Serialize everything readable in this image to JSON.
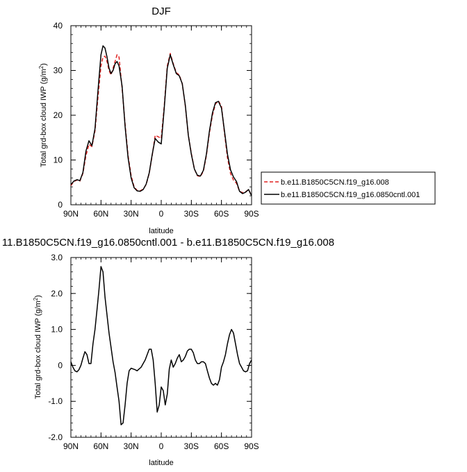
{
  "chart_data": [
    {
      "type": "line",
      "title": "DJF",
      "xlabel": "latitude",
      "ylabel_main": "Total grd-box cloud IWP (g/m",
      "ylabel_sup": "2",
      "ylabel_close": ")",
      "xlim": [
        -90,
        90
      ],
      "ylim": [
        0,
        40
      ],
      "x_ticks": [
        -90,
        -60,
        -30,
        0,
        30,
        60,
        90
      ],
      "x_tick_labels": [
        "90N",
        "60N",
        "30N",
        "0",
        "30S",
        "60S",
        "90S"
      ],
      "y_ticks": [
        0,
        10,
        20,
        30,
        40
      ],
      "y_tick_labels": [
        "0",
        "10",
        "20",
        "30",
        "40"
      ],
      "legend_position": "right",
      "series": [
        {
          "name": "b.e11.B1850C5CN.f19_g16.008",
          "color": "#e0201f",
          "dash": "dashed",
          "x": [
            -90,
            -87,
            -84,
            -81,
            -78,
            -75,
            -72,
            -69,
            -66,
            -63,
            -60,
            -58,
            -56,
            -54,
            -52,
            -50,
            -48,
            -46,
            -44,
            -42,
            -39,
            -36,
            -33,
            -30,
            -27,
            -24,
            -21,
            -18,
            -15,
            -12,
            -9,
            -6,
            -3,
            0,
            3,
            6,
            9,
            12,
            15,
            18,
            21,
            24,
            27,
            30,
            33,
            36,
            39,
            42,
            45,
            48,
            51,
            54,
            57,
            60,
            63,
            66,
            69,
            72,
            75,
            78,
            81,
            84,
            87,
            90
          ],
          "values": [
            4.3,
            5.2,
            5.5,
            5.3,
            7.0,
            11.0,
            13.5,
            13.0,
            16.5,
            24.0,
            31.0,
            33.0,
            33.2,
            32.0,
            30.0,
            29.0,
            30.5,
            32.0,
            33.5,
            33.0,
            26.0,
            18.0,
            11.0,
            6.5,
            4.0,
            3.2,
            3.1,
            3.5,
            4.5,
            7.0,
            11.0,
            15.5,
            15.2,
            14.8,
            22.0,
            31.0,
            33.8,
            31.5,
            29.5,
            29.0,
            27.0,
            22.0,
            15.5,
            11.5,
            8.0,
            6.5,
            6.3,
            7.5,
            11.0,
            16.0,
            20.0,
            22.5,
            23.2,
            22.0,
            16.0,
            10.5,
            7.0,
            5.5,
            4.8,
            3.0,
            2.7,
            2.9,
            3.4,
            2.0
          ]
        },
        {
          "name": "b.e11.B1850C5CN.f19_g16.0850cntl.001",
          "color": "#000000",
          "dash": "solid",
          "x": [
            -90,
            -87,
            -84,
            -81,
            -78,
            -75,
            -72,
            -69,
            -66,
            -63,
            -60,
            -58,
            -56,
            -54,
            -52,
            -50,
            -48,
            -46,
            -44,
            -42,
            -39,
            -36,
            -33,
            -30,
            -27,
            -24,
            -21,
            -18,
            -15,
            -12,
            -9,
            -6,
            -3,
            0,
            3,
            6,
            9,
            12,
            15,
            18,
            21,
            24,
            27,
            30,
            33,
            36,
            39,
            42,
            45,
            48,
            51,
            54,
            57,
            60,
            63,
            66,
            69,
            72,
            75,
            78,
            81,
            84,
            87,
            90
          ],
          "values": [
            4.5,
            5.3,
            5.6,
            5.4,
            7.2,
            12.0,
            14.3,
            13.2,
            17.0,
            25.5,
            33.5,
            35.5,
            35.0,
            33.0,
            30.5,
            29.3,
            30.0,
            31.5,
            32.0,
            31.0,
            26.5,
            17.5,
            10.5,
            6.0,
            3.8,
            3.1,
            3.0,
            3.4,
            4.6,
            7.1,
            11.2,
            14.8,
            14.0,
            13.6,
            21.5,
            30.5,
            33.5,
            31.3,
            29.3,
            28.8,
            27.0,
            22.2,
            15.5,
            11.3,
            8.0,
            6.6,
            6.4,
            7.7,
            11.3,
            16.4,
            20.5,
            22.8,
            23.1,
            21.6,
            16.5,
            11.3,
            7.8,
            6.2,
            5.2,
            3.0,
            2.5,
            2.8,
            3.4,
            2.0
          ]
        }
      ]
    },
    {
      "type": "line",
      "title": "11.B1850C5CN.f19_g16.0850cntl.001 - b.e11.B1850C5CN.f19_g16.008",
      "xlabel": "latitude",
      "ylabel_main": "Total grd-box cloud IWP (g/m",
      "ylabel_sup": "2",
      "ylabel_close": ")",
      "xlim": [
        -90,
        90
      ],
      "ylim": [
        -2,
        3
      ],
      "x_ticks": [
        -90,
        -60,
        -30,
        0,
        30,
        60,
        90
      ],
      "x_tick_labels": [
        "90N",
        "60N",
        "30N",
        "0",
        "30S",
        "60S",
        "90S"
      ],
      "y_ticks": [
        -2,
        -1,
        0,
        1,
        2,
        3
      ],
      "y_tick_labels": [
        "-2.0",
        "-1.0",
        "0",
        "1.0",
        "2.0",
        "3.0"
      ],
      "series": [
        {
          "color": "#000000",
          "dash": "solid",
          "x": [
            -90,
            -88,
            -86,
            -84,
            -82,
            -80,
            -78,
            -76,
            -74,
            -72,
            -70,
            -68,
            -66,
            -64,
            -62,
            -60,
            -58,
            -56,
            -54,
            -52,
            -50,
            -48,
            -46,
            -44,
            -42,
            -40,
            -38,
            -36,
            -34,
            -32,
            -30,
            -28,
            -26,
            -24,
            -22,
            -20,
            -18,
            -16,
            -14,
            -12,
            -10,
            -8,
            -6,
            -4,
            -2,
            0,
            2,
            4,
            6,
            8,
            10,
            12,
            14,
            16,
            18,
            20,
            22,
            24,
            26,
            28,
            30,
            32,
            34,
            36,
            38,
            40,
            42,
            44,
            46,
            48,
            50,
            52,
            54,
            56,
            58,
            60,
            62,
            64,
            66,
            68,
            70,
            72,
            74,
            76,
            78,
            80,
            82,
            84,
            86,
            88,
            90
          ],
          "values": [
            0.1,
            -0.05,
            -0.15,
            -0.18,
            -0.12,
            0.0,
            0.2,
            0.38,
            0.3,
            0.05,
            0.05,
            0.6,
            1.0,
            1.55,
            2.1,
            2.75,
            2.6,
            1.9,
            1.4,
            0.9,
            0.5,
            0.1,
            -0.2,
            -0.6,
            -1.0,
            -1.65,
            -1.6,
            -1.1,
            -0.5,
            -0.15,
            -0.08,
            -0.1,
            -0.12,
            -0.15,
            -0.1,
            -0.05,
            0.05,
            0.15,
            0.3,
            0.45,
            0.45,
            0.15,
            -0.5,
            -1.3,
            -1.1,
            -0.6,
            -0.7,
            -1.1,
            -0.8,
            -0.1,
            0.15,
            -0.05,
            0.05,
            0.2,
            0.3,
            0.1,
            0.15,
            0.25,
            0.4,
            0.45,
            0.45,
            0.35,
            0.15,
            0.05,
            0.05,
            0.1,
            0.1,
            0.05,
            -0.15,
            -0.35,
            -0.5,
            -0.55,
            -0.5,
            -0.55,
            -0.4,
            -0.05,
            0.1,
            0.3,
            0.6,
            0.85,
            1.0,
            0.9,
            0.6,
            0.3,
            0.05,
            -0.05,
            -0.15,
            -0.18,
            -0.15,
            0.05,
            0.15
          ]
        }
      ]
    }
  ]
}
